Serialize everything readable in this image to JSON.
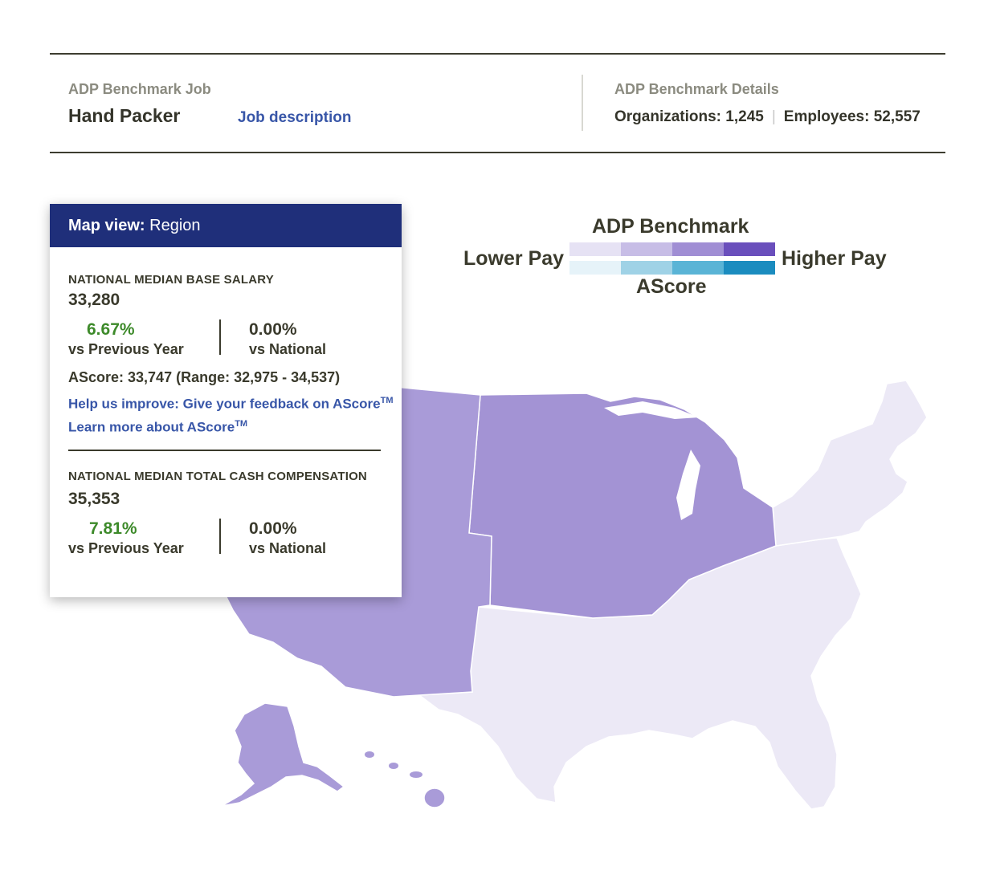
{
  "header": {
    "job_label": "ADP Benchmark Job",
    "job_title": "Hand Packer",
    "job_link": "Job description",
    "details_label": "ADP Benchmark Details",
    "organizations": "Organizations: 1,245",
    "separator": "|",
    "employees": "Employees: 52,557"
  },
  "legend": {
    "title": "ADP Benchmark",
    "lower": "Lower Pay",
    "higher": "Higher Pay",
    "ascore": "AScore",
    "benchmark_colors": [
      "#e6e2f4",
      "#c7bde6",
      "#a08ed4",
      "#6a4fbc"
    ],
    "ascore_colors": [
      "#e6f3f9",
      "#9fd2e6",
      "#5ab4d6",
      "#1b8cbf"
    ]
  },
  "map": {
    "colors": {
      "west": "#a99bd8",
      "midwest": "#a393d4",
      "south": "#ece9f6",
      "northeast": "#ece9f6",
      "border": "#ffffff"
    }
  },
  "panel": {
    "header_bold": "Map view:",
    "header_value": "Region",
    "base": {
      "label": "NATIONAL MEDIAN BASE SALARY",
      "value": "33,280",
      "vs_prev_pct": "6.67%",
      "vs_prev_label": "vs Previous Year",
      "vs_nat_pct": "0.00%",
      "vs_nat_label": "vs National"
    },
    "ascore_line": "AScore: 33,747 (Range: 32,975 - 34,537)",
    "feedback_link": "Help us improve: Give your feedback on AScore",
    "learn_link": "Learn more about AScore",
    "tm": "TM",
    "total": {
      "label": "NATIONAL MEDIAN TOTAL CASH COMPENSATION",
      "value": "35,353",
      "vs_prev_pct": "7.81%",
      "vs_prev_label": "vs Previous Year",
      "vs_nat_pct": "0.00%",
      "vs_nat_label": "vs National"
    }
  }
}
